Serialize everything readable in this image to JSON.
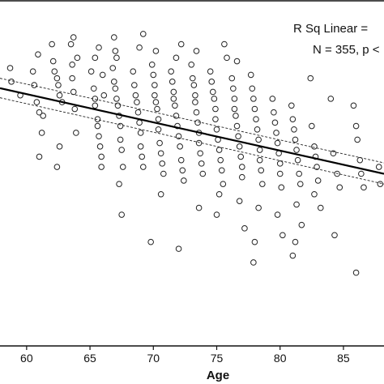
{
  "chart_data": {
    "type": "scatter",
    "title": "",
    "xlabel": "Age",
    "ylabel": "",
    "xlim": [
      57.9,
      88.2
    ],
    "ylim": [
      0,
      100
    ],
    "xticks": [
      60,
      65,
      70,
      75,
      80,
      85
    ],
    "grid": false,
    "annotations": [
      "R Sq Linear =",
      "N = 355, p <"
    ],
    "regression_line": {
      "x": [
        57.9,
        88.2
      ],
      "y": [
        75.1,
        50.0
      ]
    },
    "confidence_band": {
      "upper": {
        "x": [
          57.9,
          88.2
        ],
        "y": [
          78.0,
          53.2
        ]
      },
      "lower": {
        "x": [
          57.9,
          88.2
        ],
        "y": [
          72.3,
          47.0
        ]
      }
    },
    "series": [
      {
        "marker": "open-circle",
        "points": [
          [
            58.7,
            81
          ],
          [
            58.8,
            77
          ],
          [
            59.5,
            73
          ],
          [
            60.5,
            80
          ],
          [
            60.6,
            76
          ],
          [
            60.8,
            71
          ],
          [
            60.9,
            85
          ],
          [
            61.0,
            68
          ],
          [
            61.0,
            55
          ],
          [
            61.2,
            62
          ],
          [
            61.3,
            67
          ],
          [
            62.0,
            88
          ],
          [
            62.1,
            83
          ],
          [
            62.2,
            80
          ],
          [
            62.4,
            78
          ],
          [
            62.5,
            76
          ],
          [
            62.6,
            73
          ],
          [
            62.8,
            71
          ],
          [
            62.6,
            58
          ],
          [
            62.4,
            52
          ],
          [
            63.6,
            82
          ],
          [
            63.6,
            78
          ],
          [
            63.7,
            74
          ],
          [
            63.8,
            69
          ],
          [
            63.9,
            62
          ],
          [
            63.5,
            88
          ],
          [
            63.7,
            90
          ],
          [
            64.0,
            84
          ],
          [
            65.1,
            80
          ],
          [
            65.3,
            75
          ],
          [
            65.4,
            72
          ],
          [
            65.4,
            70
          ],
          [
            65.6,
            66
          ],
          [
            65.6,
            64
          ],
          [
            65.7,
            61
          ],
          [
            65.8,
            58
          ],
          [
            65.9,
            55
          ],
          [
            65.9,
            52
          ],
          [
            65.4,
            84
          ],
          [
            65.7,
            87
          ],
          [
            66.0,
            79
          ],
          [
            66.1,
            73
          ],
          [
            66.8,
            81
          ],
          [
            66.9,
            77
          ],
          [
            67.0,
            75
          ],
          [
            67.1,
            72
          ],
          [
            67.2,
            70
          ],
          [
            67.3,
            67
          ],
          [
            67.4,
            64
          ],
          [
            67.4,
            60
          ],
          [
            67.5,
            57
          ],
          [
            67.6,
            52
          ],
          [
            66.9,
            90
          ],
          [
            67.0,
            86
          ],
          [
            67.1,
            84
          ],
          [
            67.5,
            38
          ],
          [
            67.3,
            47
          ],
          [
            68.4,
            80
          ],
          [
            68.5,
            76
          ],
          [
            68.6,
            73
          ],
          [
            68.7,
            71
          ],
          [
            68.8,
            68
          ],
          [
            68.9,
            65
          ],
          [
            69.0,
            62
          ],
          [
            69.0,
            58
          ],
          [
            69.1,
            55
          ],
          [
            69.2,
            52
          ],
          [
            68.9,
            87
          ],
          [
            69.2,
            91
          ],
          [
            69.9,
            82
          ],
          [
            70.0,
            79
          ],
          [
            70.1,
            76
          ],
          [
            70.1,
            73
          ],
          [
            70.2,
            71
          ],
          [
            70.3,
            69
          ],
          [
            70.4,
            66
          ],
          [
            70.4,
            63
          ],
          [
            70.5,
            59
          ],
          [
            70.6,
            56
          ],
          [
            70.7,
            53
          ],
          [
            70.8,
            50
          ],
          [
            70.6,
            44
          ],
          [
            69.8,
            30
          ],
          [
            70.2,
            86
          ],
          [
            71.4,
            80
          ],
          [
            71.5,
            77
          ],
          [
            71.6,
            74
          ],
          [
            71.6,
            72
          ],
          [
            71.7,
            70
          ],
          [
            71.8,
            67
          ],
          [
            71.9,
            64
          ],
          [
            72.0,
            61
          ],
          [
            72.1,
            58
          ],
          [
            72.2,
            54
          ],
          [
            72.3,
            51
          ],
          [
            72.4,
            48
          ],
          [
            71.8,
            84
          ],
          [
            72.0,
            28
          ],
          [
            72.2,
            88
          ],
          [
            73.0,
            82
          ],
          [
            73.1,
            78
          ],
          [
            73.2,
            76
          ],
          [
            73.3,
            73
          ],
          [
            73.3,
            71
          ],
          [
            73.4,
            68
          ],
          [
            73.5,
            65
          ],
          [
            73.6,
            62
          ],
          [
            73.6,
            59
          ],
          [
            73.7,
            56
          ],
          [
            73.8,
            53
          ],
          [
            73.9,
            50
          ],
          [
            73.6,
            40
          ],
          [
            73.4,
            86
          ],
          [
            74.5,
            80
          ],
          [
            74.6,
            77
          ],
          [
            74.7,
            74
          ],
          [
            74.8,
            72
          ],
          [
            74.9,
            69
          ],
          [
            74.9,
            66
          ],
          [
            75.0,
            63
          ],
          [
            75.1,
            60
          ],
          [
            75.2,
            57
          ],
          [
            75.3,
            54
          ],
          [
            75.4,
            51
          ],
          [
            75.5,
            47
          ],
          [
            75.2,
            44
          ],
          [
            75.0,
            38
          ],
          [
            75.6,
            88
          ],
          [
            75.8,
            84
          ],
          [
            76.2,
            78
          ],
          [
            76.3,
            75
          ],
          [
            76.4,
            72
          ],
          [
            76.4,
            69
          ],
          [
            76.5,
            67
          ],
          [
            76.6,
            64
          ],
          [
            76.7,
            61
          ],
          [
            76.8,
            58
          ],
          [
            76.9,
            55
          ],
          [
            77.0,
            52
          ],
          [
            77.0,
            49
          ],
          [
            76.8,
            42
          ],
          [
            77.2,
            34
          ],
          [
            76.6,
            83
          ],
          [
            77.7,
            79
          ],
          [
            77.8,
            75
          ],
          [
            77.9,
            72
          ],
          [
            78.0,
            69
          ],
          [
            78.1,
            66
          ],
          [
            78.2,
            63
          ],
          [
            78.3,
            60
          ],
          [
            78.4,
            57
          ],
          [
            78.4,
            54
          ],
          [
            78.5,
            51
          ],
          [
            78.6,
            47
          ],
          [
            78.3,
            40
          ],
          [
            78.0,
            30
          ],
          [
            77.9,
            24
          ],
          [
            79.4,
            72
          ],
          [
            79.5,
            68
          ],
          [
            79.6,
            65
          ],
          [
            79.7,
            62
          ],
          [
            79.8,
            59
          ],
          [
            79.9,
            56
          ],
          [
            80.0,
            53
          ],
          [
            80.0,
            50
          ],
          [
            80.1,
            46
          ],
          [
            79.8,
            38
          ],
          [
            80.2,
            32
          ],
          [
            80.9,
            70
          ],
          [
            81.0,
            66
          ],
          [
            81.1,
            63
          ],
          [
            81.2,
            60
          ],
          [
            81.3,
            57
          ],
          [
            81.4,
            54
          ],
          [
            81.5,
            50
          ],
          [
            81.6,
            47
          ],
          [
            81.3,
            41
          ],
          [
            81.7,
            35
          ],
          [
            81.2,
            30
          ],
          [
            81.0,
            26
          ],
          [
            82.4,
            78
          ],
          [
            82.5,
            64
          ],
          [
            82.7,
            58
          ],
          [
            82.8,
            55
          ],
          [
            82.9,
            52
          ],
          [
            83.0,
            48
          ],
          [
            82.7,
            44
          ],
          [
            83.2,
            40
          ],
          [
            84.0,
            72
          ],
          [
            84.2,
            56
          ],
          [
            84.5,
            50
          ],
          [
            84.7,
            46
          ],
          [
            84.3,
            32
          ],
          [
            85.8,
            70
          ],
          [
            86.0,
            64
          ],
          [
            86.1,
            60
          ],
          [
            86.3,
            54
          ],
          [
            86.4,
            50
          ],
          [
            86.6,
            46
          ],
          [
            86.0,
            21
          ],
          [
            87.8,
            52
          ],
          [
            87.9,
            47
          ]
        ]
      }
    ]
  }
}
